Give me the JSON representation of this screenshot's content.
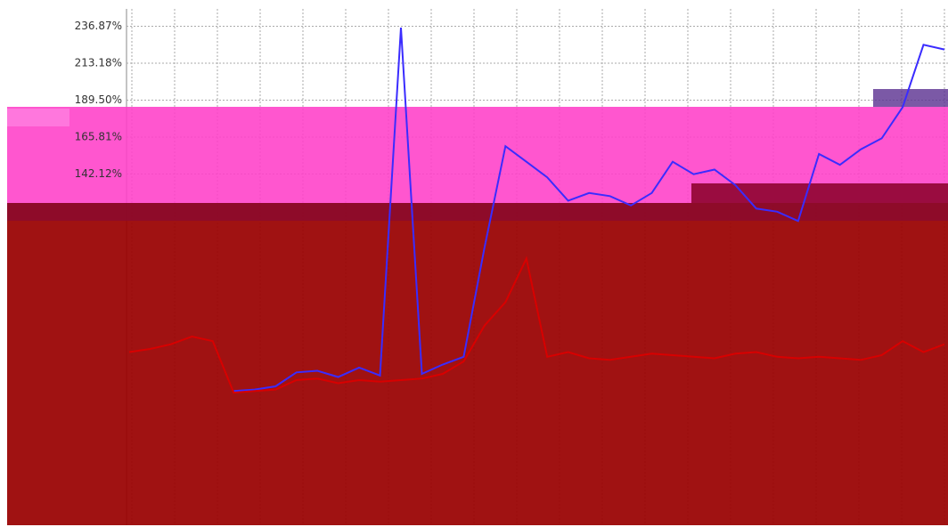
{
  "chart_data": {
    "type": "line",
    "categories": [
      null,
      null,
      null,
      null,
      null,
      null,
      null,
      null,
      null,
      null,
      null,
      null,
      null,
      null,
      null,
      null,
      null,
      null,
      null,
      null,
      null,
      null,
      null,
      null,
      null,
      null,
      null,
      null,
      null,
      null,
      null,
      null,
      null,
      null,
      null,
      null,
      null,
      null,
      null,
      null
    ],
    "series": [
      {
        "color": "#3a2cff",
        "values": [
          null,
          null,
          null,
          null,
          null,
          3,
          4,
          6,
          15,
          16,
          12,
          18,
          13,
          236,
          14,
          20,
          25,
          95,
          160,
          150,
          140,
          125,
          130,
          128,
          122,
          130,
          150,
          142,
          145,
          135,
          120,
          118,
          112,
          155,
          148,
          158,
          165,
          185,
          225,
          222
        ]
      },
      {
        "color": "#d80000",
        "values": [
          28,
          30,
          33,
          38,
          35,
          2,
          3,
          4,
          10,
          11,
          8,
          10,
          9,
          10,
          11,
          14,
          22,
          45,
          60,
          88,
          25,
          28,
          24,
          23,
          25,
          27,
          26,
          25,
          24,
          27,
          28,
          25,
          24,
          25,
          24,
          23,
          26,
          35,
          28,
          33
        ]
      }
    ],
    "ylim": [
      -83,
      248
    ],
    "yticks": [
      {
        "value": 236.87,
        "label": "236.87%"
      },
      {
        "value": 213.18,
        "label": "213.18%"
      },
      {
        "value": 189.5,
        "label": "189.50%"
      },
      {
        "value": 165.81,
        "label": "165.81%"
      },
      {
        "value": 142.12,
        "label": "142.12%"
      }
    ],
    "grid": true
  }
}
